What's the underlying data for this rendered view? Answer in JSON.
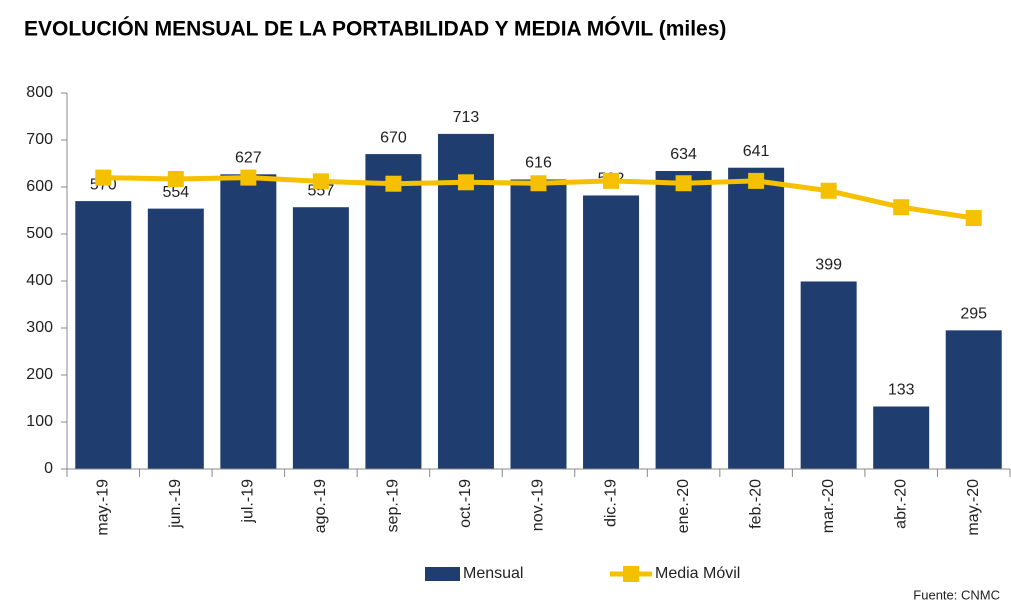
{
  "chart_data": {
    "type": "bar",
    "title": "EVOLUCIÓN MENSUAL DE LA PORTABILIDAD Y MEDIA MÓVIL (miles)",
    "categories": [
      "may.-19",
      "jun.-19",
      "jul.-19",
      "ago.-19",
      "sep.-19",
      "oct.-19",
      "nov.-19",
      "dic.-19",
      "ene.-20",
      "feb.-20",
      "mar.-20",
      "abr.-20",
      "may.-20"
    ],
    "series": [
      {
        "name": "Mensual",
        "type": "bar",
        "color": "#1f3d6e",
        "values": [
          570,
          554,
          627,
          557,
          670,
          713,
          616,
          582,
          634,
          641,
          399,
          133,
          295
        ]
      },
      {
        "name": "Media Móvil",
        "type": "line",
        "color": "#f5c000",
        "values": [
          620,
          617,
          620,
          612,
          607,
          610,
          608,
          613,
          608,
          613,
          592,
          557,
          534
        ]
      }
    ],
    "ylim": [
      0,
      800
    ],
    "yticks": [
      0,
      100,
      200,
      300,
      400,
      500,
      600,
      700,
      800
    ],
    "source": "Fuente: CNMC"
  }
}
